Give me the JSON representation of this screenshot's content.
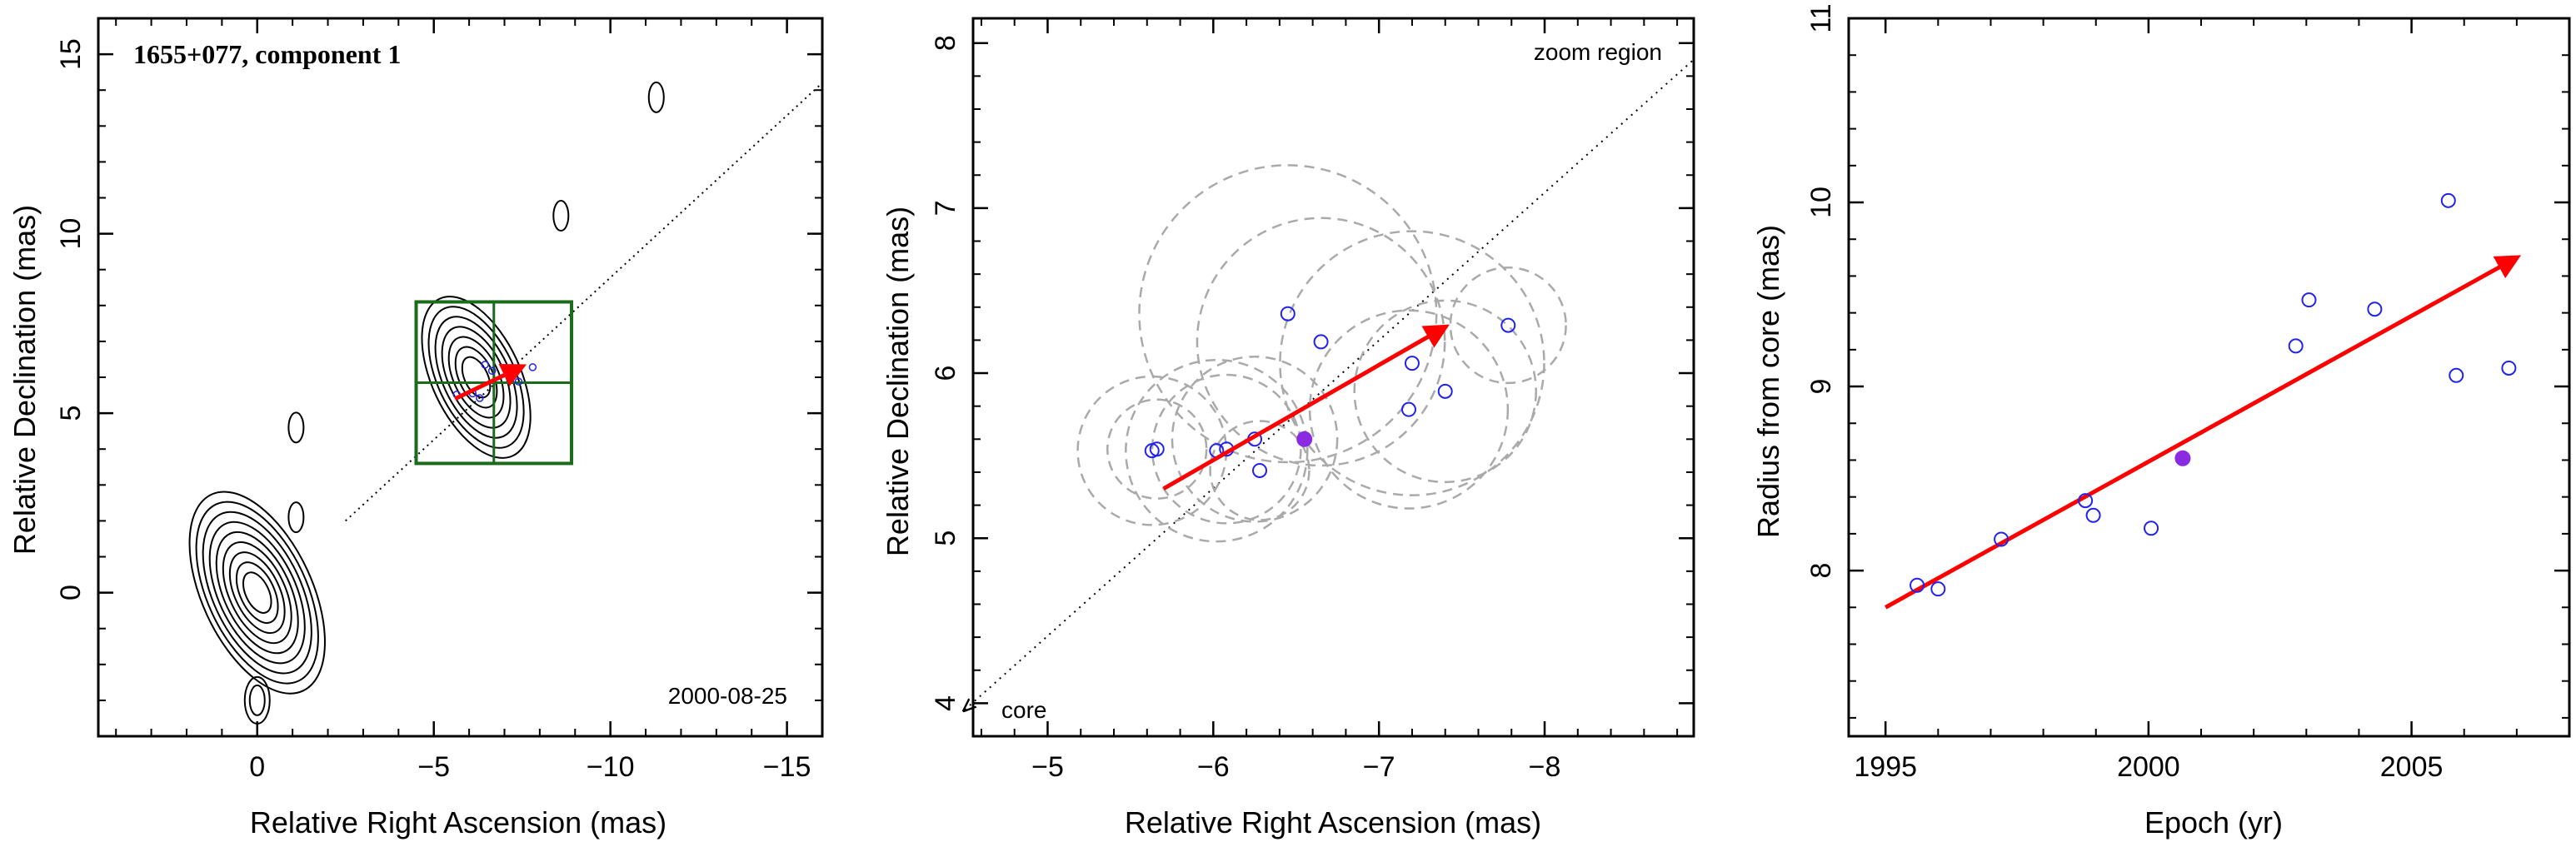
{
  "chart_data": [
    {
      "type": "scatter",
      "title": "1655+077, component 1",
      "xlabel": "Relative Right Ascension (mas)",
      "ylabel": "Relative Declination (mas)",
      "xlim": [
        4.5,
        -16.0
      ],
      "ylim": [
        -4.0,
        16.0
      ],
      "xticks": [
        0,
        -5,
        -10,
        -15
      ],
      "yticks": [
        0,
        5,
        10,
        15
      ],
      "annotations": {
        "epoch": "2000-08-25"
      },
      "contour_components": [
        {
          "x": 0.0,
          "y": 0.0,
          "levels": 9
        },
        {
          "x": -6.2,
          "y": 6.0,
          "levels": 7
        },
        {
          "x": -1.1,
          "y": 2.1,
          "levels": 1
        },
        {
          "x": -11.3,
          "y": 13.8,
          "levels": 1
        },
        {
          "x": -8.6,
          "y": 10.5,
          "levels": 1
        },
        {
          "x": -1.1,
          "y": 4.6,
          "levels": 1
        },
        {
          "x": 0.0,
          "y": -3.0,
          "levels": 2
        }
      ],
      "zoom_box": {
        "x": [
          -4.5,
          -8.9
        ],
        "y": [
          3.6,
          8.1
        ]
      },
      "trajectory_line": [
        [
          -2.5,
          2.0
        ],
        [
          -16.0,
          14.2
        ]
      ],
      "motion_vector": {
        "from": [
          -5.6,
          5.4
        ],
        "to": [
          -7.5,
          6.3
        ]
      },
      "series": [
        {
          "x": [
            -5.65,
            -6.1,
            -6.3,
            -6.45,
            -6.65,
            -7.2,
            -7.4,
            -7.8
          ],
          "y": [
            5.52,
            5.55,
            5.42,
            6.35,
            6.18,
            6.05,
            5.88,
            6.28
          ]
        }
      ]
    },
    {
      "type": "scatter",
      "xlabel": "Relative Right Ascension (mas)",
      "ylabel": "Relative Declination (mas)",
      "xlim": [
        -4.55,
        -8.9
      ],
      "ylim": [
        3.8,
        8.15
      ],
      "xticks": [
        -5,
        -6,
        -7,
        -8
      ],
      "yticks": [
        4,
        5,
        6,
        7,
        8
      ],
      "annotations": {
        "zoom": "zoom region",
        "core": "core"
      },
      "trajectory_line": [
        [
          -4.5,
          3.96
        ],
        [
          -8.9,
          7.9
        ]
      ],
      "motion_vector": {
        "from": [
          -5.7,
          5.3
        ],
        "to": [
          -7.4,
          6.28
        ]
      },
      "series": [
        {
          "x": [
            -5.63,
            -5.66,
            -6.02,
            -6.08,
            -6.25,
            -6.28,
            -6.45,
            -6.65,
            -7.18,
            -7.2,
            -7.4,
            -7.78
          ],
          "y": [
            5.53,
            5.54,
            5.53,
            5.54,
            5.6,
            5.41,
            6.36,
            6.19,
            5.78,
            6.06,
            5.89,
            6.29
          ],
          "radius": [
            0.45,
            0.3,
            0.55,
            0.45,
            0.5,
            0.3,
            0.9,
            0.75,
            0.6,
            0.8,
            0.55,
            0.35
          ],
          "highlight": {
            "x": -6.55,
            "y": 5.6
          }
        }
      ]
    },
    {
      "type": "scatter",
      "xlabel": "Epoch (yr)",
      "ylabel": "Radius from core (mas)",
      "xlim": [
        1994.3,
        2008.0
      ],
      "ylim": [
        7.1,
        11.0
      ],
      "xticks": [
        1995,
        2000,
        2005
      ],
      "yticks": [
        8,
        9,
        10,
        11
      ],
      "fit_vector": {
        "from": [
          1995.0,
          7.8
        ],
        "to": [
          2007.0,
          9.7
        ]
      },
      "series": [
        {
          "x": [
            1995.6,
            1996.0,
            1997.2,
            1998.8,
            1998.95,
            2000.05,
            2002.8,
            2003.05,
            2004.3,
            2005.7,
            2005.85,
            2006.85
          ],
          "y": [
            7.92,
            7.9,
            8.17,
            8.38,
            8.3,
            8.23,
            9.22,
            9.47,
            9.42,
            10.01,
            9.06,
            9.1
          ],
          "highlight": {
            "x": 2000.65,
            "y": 8.61
          }
        }
      ]
    }
  ]
}
